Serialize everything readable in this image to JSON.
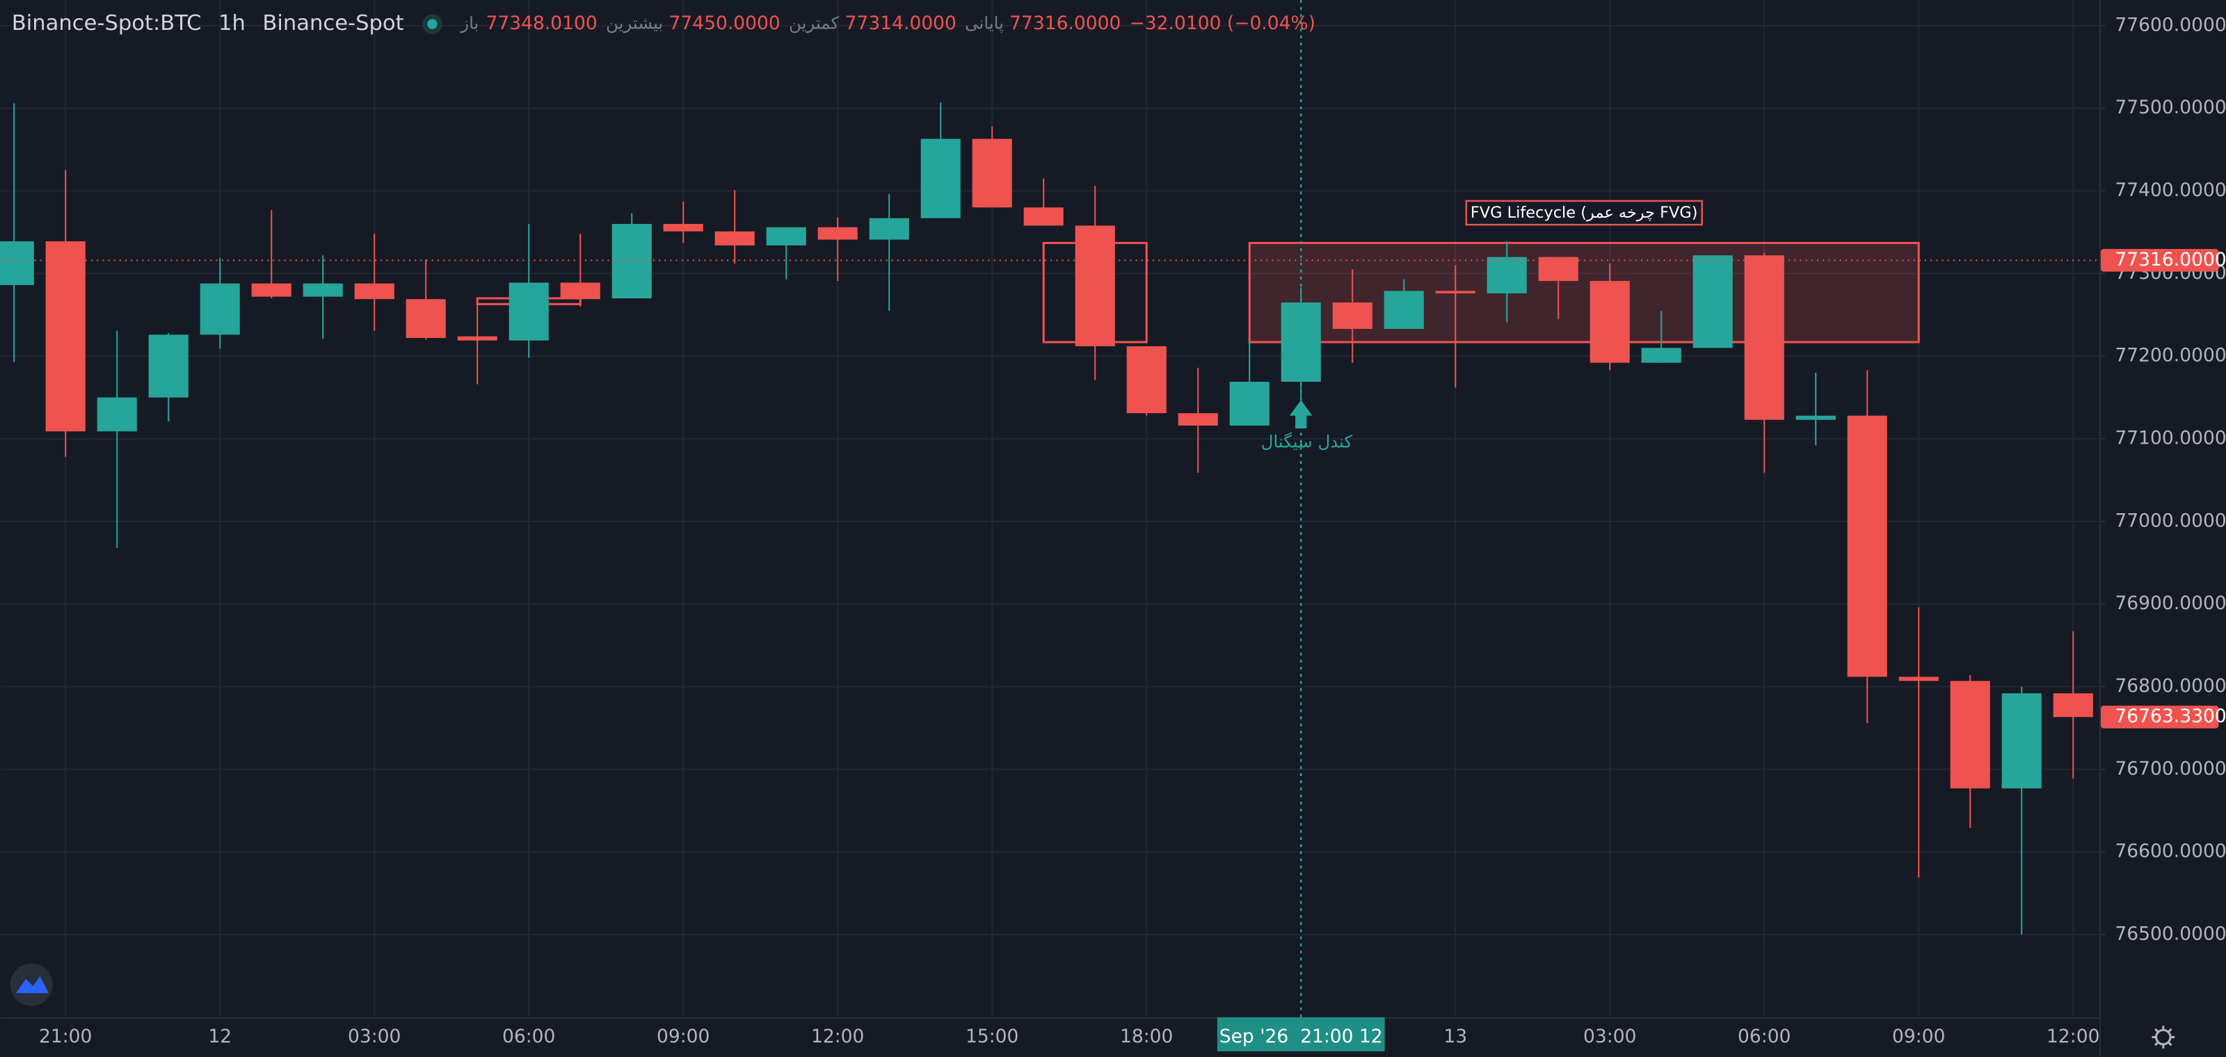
{
  "chart_data": {
    "type": "candlestick",
    "header": {
      "symbol": "Binance-Spot:BTC",
      "interval": "1h",
      "exchange": "Binance-Spot",
      "legend": [
        {
          "label": "باز",
          "value": "77348.0100"
        },
        {
          "label": "بیشترین",
          "value": "77450.0000"
        },
        {
          "label": "کمترین",
          "value": "77314.0000"
        },
        {
          "label": "پایانی",
          "value": "77316.0000"
        }
      ],
      "change": "−32.0100 (−0.04%)"
    },
    "categories": [
      null,
      "21:00",
      null,
      null,
      "12",
      null,
      null,
      "03:00",
      null,
      null,
      "06:00",
      null,
      null,
      "09:00",
      null,
      null,
      "12:00",
      null,
      null,
      "15:00",
      null,
      null,
      "18:00",
      null,
      null,
      null,
      null,
      null,
      "13",
      null,
      null,
      "03:00",
      null,
      null,
      "06:00",
      null,
      null,
      "09:00",
      null,
      null,
      "12:00"
    ],
    "open": [
      77286,
      77339,
      77109,
      77150,
      77226,
      77288,
      77272,
      77288,
      77269,
      77224,
      77219,
      77289,
      77270,
      77360,
      77351,
      77334,
      77356,
      77341,
      77367,
      77463,
      77380,
      77358,
      77212,
      77131,
      77116,
      77169,
      77265,
      77233,
      77279,
      77276,
      77320,
      77291,
      77192,
      77210,
      77322,
      77123,
      77128,
      76812,
      76807,
      76677,
      76792
    ],
    "high": [
      77506,
      77425,
      77231,
      77228,
      77319,
      77377,
      77322,
      77348,
      77317,
      77264,
      77360,
      77348,
      77373,
      77387,
      77401,
      77356,
      77368,
      77396,
      77507,
      77478,
      77415,
      77406,
      77212,
      77186,
      77219,
      77283,
      77305,
      77293,
      77310,
      77339,
      77320,
      77312,
      77255,
      77322,
      77325,
      77180,
      77183,
      76896,
      76814,
      76800,
      76867
    ],
    "low": [
      77193,
      77078,
      76968,
      77121,
      77209,
      77270,
      77221,
      77231,
      77220,
      77166,
      77198,
      77260,
      77270,
      77337,
      77312,
      77293,
      77291,
      77255,
      77367,
      77380,
      77358,
      77171,
      77128,
      77059,
      77116,
      77120,
      77192,
      77233,
      77162,
      77241,
      77245,
      77183,
      77192,
      77210,
      77059,
      77092,
      76756,
      76569,
      76629,
      76500,
      76689
    ],
    "close": [
      77339,
      77109,
      77150,
      77226,
      77288,
      77272,
      77288,
      77269,
      77222,
      77219,
      77289,
      77269,
      77360,
      77351,
      77334,
      77356,
      77341,
      77367,
      77463,
      77380,
      77358,
      77212,
      77131,
      77116,
      77169,
      77265,
      77233,
      77279,
      77276,
      77320,
      77291,
      77192,
      77210,
      77322,
      77123,
      77128,
      76812,
      76807,
      76677,
      76792,
      76763.33
    ],
    "up_color": "#26a69a",
    "down_color": "#ef5350",
    "ylim": [
      76400,
      77631
    ],
    "yticks": [
      {
        "value": 76500,
        "label": "76500.0000"
      },
      {
        "value": 76600,
        "label": "76600.0000"
      },
      {
        "value": 76700,
        "label": "76700.0000"
      },
      {
        "value": 76800,
        "label": "76800.0000"
      },
      {
        "value": 76900,
        "label": "76900.0000"
      },
      {
        "value": 77000,
        "label": "77000.0000"
      },
      {
        "value": 77100,
        "label": "77100.0000"
      },
      {
        "value": 77200,
        "label": "77200.0000"
      },
      {
        "value": 77300,
        "label": "77300.0000"
      },
      {
        "value": 77400,
        "label": "77400.0000"
      },
      {
        "value": 77500,
        "label": "77500.0000"
      },
      {
        "value": 77600,
        "label": "77600.0000"
      }
    ],
    "grid": true,
    "price_line": {
      "value": 77316,
      "label": "77316.0000"
    },
    "last_price": {
      "value": 76763.33,
      "label": "76763.3300"
    },
    "zones": [
      {
        "start": 9,
        "end": 11,
        "top": 77270,
        "bottom": 77263,
        "filled": false
      },
      {
        "start": 20,
        "end": 22,
        "top": 77337,
        "bottom": 77217,
        "filled": false
      },
      {
        "start": 24,
        "end": 37,
        "top": 77337,
        "bottom": 77217,
        "filled": true,
        "label": "FVG Lifecycle (چرخه عمر FVG)"
      }
    ],
    "signal": {
      "index": 25,
      "label": "کندل سیگنال"
    },
    "crosshair": {
      "index": 25,
      "label": "Sep '26  21:00 12"
    }
  }
}
